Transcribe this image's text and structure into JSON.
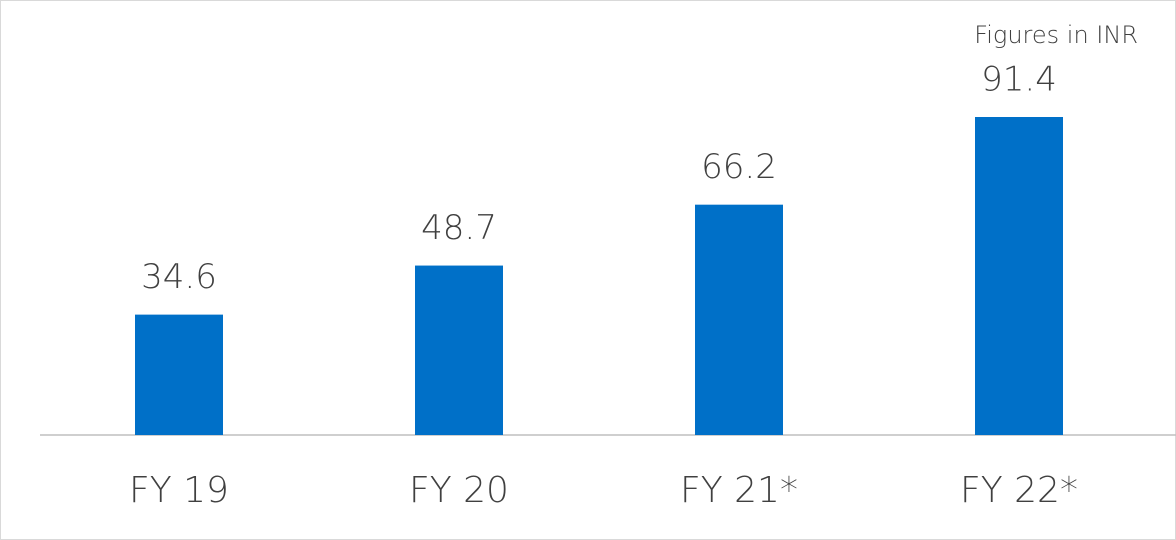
{
  "chart_data": {
    "type": "bar",
    "annotation": "Figures in INR",
    "categories": [
      "FY 19",
      "FY 20",
      "FY 21*",
      "FY 22*"
    ],
    "values": [
      34.6,
      48.7,
      66.2,
      91.4
    ],
    "color": "#0070c8"
  }
}
